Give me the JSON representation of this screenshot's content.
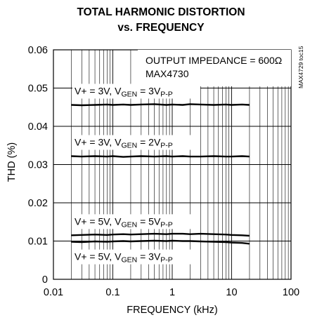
{
  "chart_data": {
    "type": "line",
    "title_lines": [
      "TOTAL HARMONIC DISTORTION",
      "vs. FREQUENCY"
    ],
    "xlabel": "FREQUENCY (kHz)",
    "ylabel": "THD (%)",
    "xscale": "log",
    "xlim": [
      0.01,
      100
    ],
    "ylim": [
      0,
      0.06
    ],
    "grid": true,
    "x_ticks": [
      "0.01",
      "0.1",
      "1",
      "10",
      "100"
    ],
    "y_ticks": [
      "0",
      "0.01",
      "0.02",
      "0.03",
      "0.04",
      "0.05",
      "0.06"
    ],
    "annotations": [
      "OUTPUT IMPEDANCE = 600Ω",
      "MAX4730"
    ],
    "side_label": "MAX4729 toc15",
    "series": [
      {
        "label": {
          "main": "V+ = 3V, V",
          "sub1": "GEN",
          "mid": " = 3V",
          "sub2": "P-P"
        },
        "x": [
          0.02,
          0.03,
          0.05,
          0.08,
          0.1,
          0.15,
          0.2,
          0.3,
          0.5,
          0.8,
          1,
          1.5,
          2,
          3,
          5,
          8,
          10,
          15,
          20
        ],
        "y": [
          0.0456,
          0.0455,
          0.0456,
          0.0457,
          0.0456,
          0.0457,
          0.0456,
          0.0457,
          0.0458,
          0.0456,
          0.0457,
          0.0456,
          0.0458,
          0.0457,
          0.0456,
          0.0457,
          0.0456,
          0.0457,
          0.0456
        ]
      },
      {
        "label": {
          "main": "V+ = 3V, V",
          "sub1": "GEN",
          "mid": " = 2V",
          "sub2": "P-P"
        },
        "x": [
          0.02,
          0.03,
          0.05,
          0.08,
          0.1,
          0.15,
          0.2,
          0.3,
          0.5,
          0.8,
          1,
          1.5,
          2,
          3,
          5,
          8,
          10,
          15,
          20
        ],
        "y": [
          0.0322,
          0.0321,
          0.0322,
          0.0321,
          0.0322,
          0.032,
          0.0321,
          0.0322,
          0.0321,
          0.0322,
          0.0321,
          0.0322,
          0.0321,
          0.0321,
          0.0322,
          0.0321,
          0.0321,
          0.0322,
          0.0321
        ]
      },
      {
        "label": {
          "main": "V+ = 5V, V",
          "sub1": "GEN",
          "mid": " = 5V",
          "sub2": "P-P"
        },
        "x": [
          0.02,
          0.03,
          0.05,
          0.08,
          0.1,
          0.15,
          0.2,
          0.3,
          0.5,
          0.8,
          1,
          1.5,
          2,
          3,
          5,
          8,
          10,
          15,
          20
        ],
        "y": [
          0.0115,
          0.0116,
          0.0117,
          0.0116,
          0.0117,
          0.0118,
          0.0117,
          0.0118,
          0.0119,
          0.0118,
          0.0119,
          0.0119,
          0.0118,
          0.0119,
          0.0118,
          0.0117,
          0.0116,
          0.0115,
          0.0114
        ]
      },
      {
        "label": {
          "main": "V+ = 5V, V",
          "sub1": "GEN",
          "mid": " = 3V",
          "sub2": "P-P"
        },
        "x": [
          0.02,
          0.03,
          0.05,
          0.08,
          0.1,
          0.15,
          0.2,
          0.3,
          0.5,
          0.8,
          1,
          1.5,
          2,
          3,
          5,
          8,
          10,
          15,
          20
        ],
        "y": [
          0.0098,
          0.0097,
          0.0099,
          0.0098,
          0.0099,
          0.01,
          0.0099,
          0.01,
          0.0101,
          0.01,
          0.0101,
          0.01,
          0.01,
          0.0099,
          0.0098,
          0.0097,
          0.0096,
          0.0095,
          0.0093
        ]
      }
    ]
  }
}
